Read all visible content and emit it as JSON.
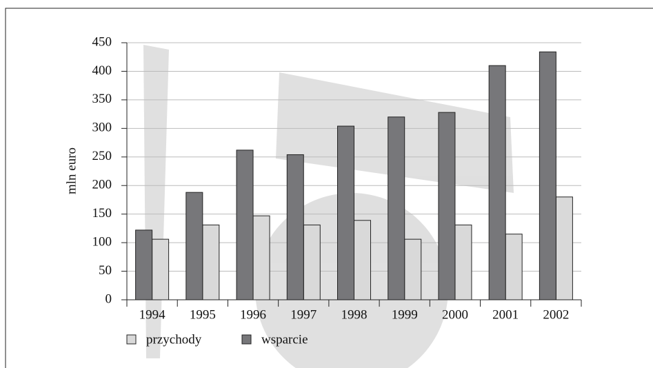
{
  "chart_data": {
    "type": "bar",
    "y_label": "mln euro",
    "categories": [
      "1994",
      "1995",
      "1996",
      "1997",
      "1998",
      "1999",
      "2000",
      "2001",
      "2002"
    ],
    "series": [
      {
        "name": "przychody",
        "color": "#d9d9d9",
        "values": [
          106,
          131,
          147,
          131,
          139,
          106,
          131,
          115,
          180
        ]
      },
      {
        "name": "wsparcie",
        "color": "#77777a",
        "values": [
          122,
          188,
          262,
          254,
          304,
          320,
          328,
          410,
          434
        ]
      }
    ],
    "ylim": [
      0,
      450
    ],
    "yticks": [
      0,
      50,
      100,
      150,
      200,
      250,
      300,
      350,
      400,
      450
    ],
    "grid": true
  }
}
